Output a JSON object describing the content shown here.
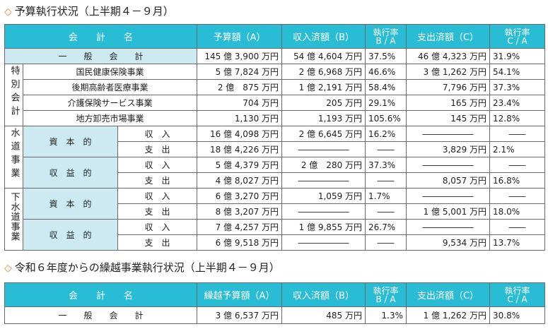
{
  "section1": {
    "title": "予算執行状況（上半期４－９月）",
    "headers": {
      "name": "会　　計　　名",
      "budget": "予算額（A）",
      "revenue": "収入済額（B）",
      "rate_ba_1": "執行率",
      "rate_ba_2": "B / A",
      "expense": "支出済額（C）",
      "rate_ca_1": "執行率",
      "rate_ca_2": "C / A"
    },
    "general": {
      "label": "一　　般　　会　　計",
      "budget": "145 億 3,900 万円",
      "revenue": "54 億 4,604 万円",
      "rate_ba": "37.5%",
      "expense": "46 億 4,323 万円",
      "rate_ca": "31.9%"
    },
    "special_group": "特別会計",
    "special_rows": [
      {
        "label": "国民健康保険事業",
        "budget": "5 億 7,824 万円",
        "revenue": "2 億 6,968 万円",
        "rate_ba": "46.6%",
        "expense": "3 億 1,262 万円",
        "rate_ca": "54.1%"
      },
      {
        "label": "後期高齢者医療事業",
        "budget": "2 億　875 万円",
        "revenue": "1 億 2,191 万円",
        "rate_ba": "58.4%",
        "expense": "7,796 万円",
        "rate_ca": "37.3%"
      },
      {
        "label": "介護保険サービス事業",
        "budget": "704 万円",
        "revenue": "205 万円",
        "rate_ba": "29.1%",
        "expense": "165 万円",
        "rate_ca": "23.4%"
      },
      {
        "label": "地方卸売市場事業",
        "budget": "1,130 万円",
        "revenue": "1,193 万円",
        "rate_ba": "105.6%",
        "expense": "145 万円",
        "rate_ca": "12.8%"
      }
    ],
    "water_group": "水道事業",
    "sewer_group": "下水道事業",
    "kind_capital": "資　本　的",
    "kind_profit": "収　益　的",
    "inc": "収　入",
    "out": "支　出",
    "water_rows": [
      {
        "budget": "16 億 4,098 万円",
        "revenue": "2 億 6,645 万円",
        "rate_ba": "16.2%",
        "expense": "――――――",
        "rate_ca": "――"
      },
      {
        "budget": "18 億 4,226 万円",
        "revenue": "――――――",
        "rate_ba": "――",
        "expense": "3,829 万円",
        "rate_ca": "2.1%"
      },
      {
        "budget": "5 億 4,379 万円",
        "revenue": "2 億　280 万円",
        "rate_ba": "37.3%",
        "expense": "――――――",
        "rate_ca": "――"
      },
      {
        "budget": "4 億 8,027 万円",
        "revenue": "――――――",
        "rate_ba": "――",
        "expense": "8,057 万円",
        "rate_ca": "16.8%"
      }
    ],
    "sewer_rows": [
      {
        "budget": "6 億 3,270 万円",
        "revenue": "1,059 万円",
        "rate_ba": "1.7%",
        "expense": "――――――",
        "rate_ca": "――"
      },
      {
        "budget": "8 億 3,207 万円",
        "revenue": "――――――",
        "rate_ba": "――",
        "expense": "1 億 5,001 万円",
        "rate_ca": "18.0%"
      },
      {
        "budget": "7 億 4,257 万円",
        "revenue": "1 億 9,855 万円",
        "rate_ba": "26.7%",
        "expense": "――――――",
        "rate_ca": "――"
      },
      {
        "budget": "6 億 9,518 万円",
        "revenue": "――――――",
        "rate_ba": "――",
        "expense": "9,534 万円",
        "rate_ca": "13.7%"
      }
    ]
  },
  "section2": {
    "title": "令和６年度からの繰越事業執行状況（上半期４－９月）",
    "headers": {
      "name": "会　　計　　名",
      "budget": "繰越予算額（A）",
      "revenue": "収入済額（B）",
      "rate_ba_1": "執行率",
      "rate_ba_2": "B / A",
      "expense": "支出済額（C）",
      "rate_ca_1": "執行率",
      "rate_ca_2": "C / A"
    },
    "general": {
      "label": "一　　般　　会　　計",
      "budget": "3 億 6,537 万円",
      "revenue": "485 万円",
      "rate_ba": "1.3%",
      "expense": "1 億 1,262 万円",
      "rate_ca": "30.8%"
    }
  },
  "colors": {
    "header_bg": "#29bcd5",
    "label_bg": "#cdeaf3",
    "diamond": "#e38a2e"
  }
}
